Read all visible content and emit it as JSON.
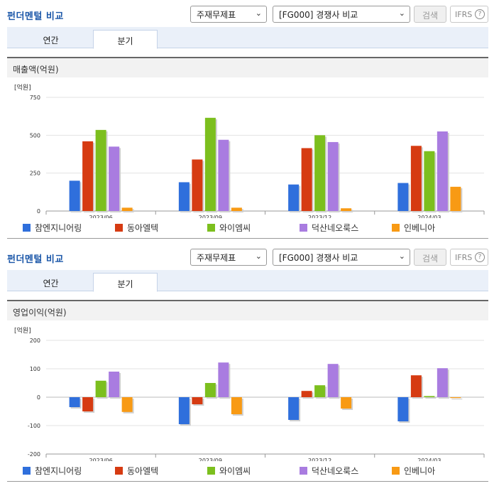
{
  "widget": {
    "title": "펀더멘털 비교",
    "select_type": "주재무제표",
    "select_compare": "[FG000] 경쟁사 비교",
    "search_label": "검색",
    "ifrs_label": "IFRS",
    "help_glyph": "?",
    "tabs": [
      "연간",
      "분기"
    ],
    "active_tab": "분기"
  },
  "panels": [
    {
      "subtitle": "매출액(억원)"
    },
    {
      "subtitle": "영업이익(억원)"
    }
  ],
  "colors": {
    "참엔지니어링": "#2f6fdc",
    "동아엘텍": "#d63b12",
    "와이엠씨": "#7cbf1e",
    "덕산네오룩스": "#a97ce0",
    "인베니아": "#f89a14"
  },
  "chart_data": [
    {
      "type": "bar",
      "unit_label": "[억원]",
      "categories": [
        "2023/06",
        "2023/09",
        "2023/12",
        "2024/03"
      ],
      "ylim": [
        0,
        750
      ],
      "yticks": [
        0,
        250,
        500,
        750
      ],
      "series": [
        {
          "name": "참엔지니어링",
          "values": [
            200,
            190,
            175,
            185
          ]
        },
        {
          "name": "동아엘텍",
          "values": [
            460,
            340,
            415,
            430
          ]
        },
        {
          "name": "와이엠씨",
          "values": [
            535,
            615,
            500,
            395
          ]
        },
        {
          "name": "덕산네오룩스",
          "values": [
            425,
            470,
            455,
            525
          ]
        },
        {
          "name": "인베니아",
          "values": [
            22,
            22,
            18,
            160
          ]
        }
      ],
      "grid": true,
      "legend": "bottom"
    },
    {
      "type": "bar",
      "unit_label": "[억원]",
      "categories": [
        "2023/06",
        "2023/09",
        "2023/12",
        "2024/03"
      ],
      "ylim": [
        -200,
        200
      ],
      "yticks": [
        -200,
        -100,
        0,
        100,
        200
      ],
      "series": [
        {
          "name": "참엔지니어링",
          "values": [
            -35,
            -95,
            -80,
            -85
          ]
        },
        {
          "name": "동아엘텍",
          "values": [
            -50,
            -25,
            22,
            77
          ]
        },
        {
          "name": "와이엠씨",
          "values": [
            58,
            50,
            42,
            4
          ]
        },
        {
          "name": "덕산네오룩스",
          "values": [
            90,
            122,
            117,
            102
          ]
        },
        {
          "name": "인베니아",
          "values": [
            -52,
            -60,
            -40,
            -3
          ]
        }
      ],
      "grid": true,
      "legend": "bottom"
    }
  ]
}
